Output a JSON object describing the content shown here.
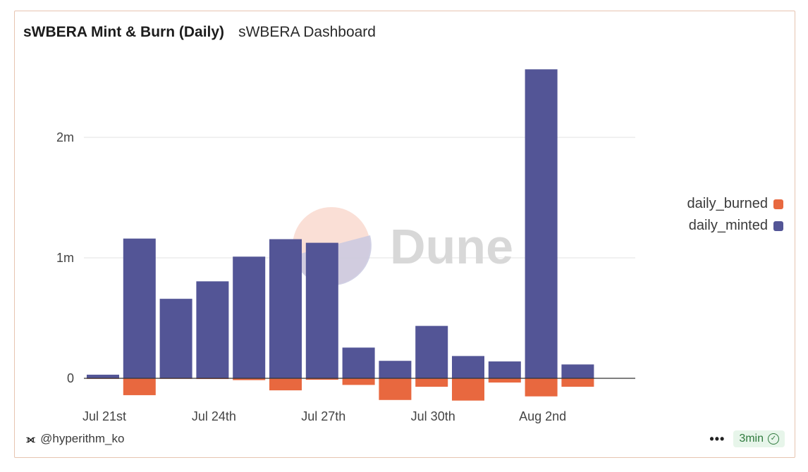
{
  "header": {
    "title": "sWBERA Mint & Burn (Daily)",
    "subtitle": "sWBERA Dashboard"
  },
  "watermark": {
    "text": "Dune"
  },
  "footer": {
    "author": "@hyperithm_ko",
    "more_label": "•••",
    "refresh_label": "3min"
  },
  "colors": {
    "daily_minted": "#535596",
    "daily_burned": "#e8683f"
  },
  "chart_data": {
    "type": "bar",
    "stacked": true,
    "x_tick_labels": [
      "Jul 21st",
      "Jul 24th",
      "Jul 27th",
      "Jul 30th",
      "Aug 2nd"
    ],
    "x": [
      "2025-07-21",
      "2025-07-22",
      "2025-07-23",
      "2025-07-24",
      "2025-07-25",
      "2025-07-26",
      "2025-07-27",
      "2025-07-28",
      "2025-07-29",
      "2025-07-30",
      "2025-07-31",
      "2025-08-01",
      "2025-08-02",
      "2025-08-03"
    ],
    "series": [
      {
        "name": "daily_burned",
        "values": [
          -2000,
          -140000,
          -3000,
          -6000,
          -15000,
          -100000,
          -12000,
          -55000,
          -180000,
          -70000,
          -185000,
          -35000,
          -150000,
          -70000
        ]
      },
      {
        "name": "daily_minted",
        "values": [
          30000,
          1160000,
          660000,
          805000,
          1010000,
          1155000,
          1125000,
          255000,
          145000,
          435000,
          185000,
          140000,
          2565000,
          115000
        ]
      }
    ],
    "y_tick_labels": [
      "0",
      "1m",
      "2m"
    ],
    "y_ticks": [
      0,
      1000000,
      2000000
    ],
    "ylim": [
      -220000,
      2600000
    ],
    "grid": true,
    "legend_position": "right"
  }
}
